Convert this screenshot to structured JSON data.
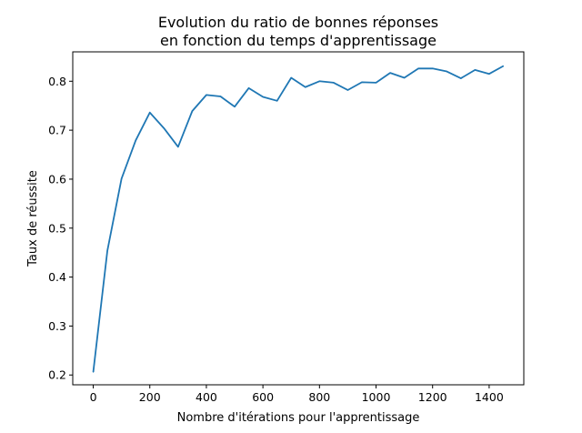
{
  "chart_data": {
    "type": "line",
    "title_lines": [
      "Evolution du ratio de bonnes réponses",
      "en fonction du temps d'apprentissage"
    ],
    "xlabel": "Nombre d'itérations pour l'apprentissage",
    "ylabel": "Taux de réussite",
    "xlim": [
      -72.5,
      1522.5
    ],
    "ylim": [
      0.18,
      0.86
    ],
    "xticks": [
      0,
      200,
      400,
      600,
      800,
      1000,
      1200,
      1400
    ],
    "yticks": [
      0.2,
      0.3,
      0.4,
      0.5,
      0.6,
      0.7,
      0.8
    ],
    "xtick_labels": [
      "0",
      "200",
      "400",
      "600",
      "800",
      "1000",
      "1200",
      "1400"
    ],
    "ytick_labels": [
      "0.2",
      "0.3",
      "0.4",
      "0.5",
      "0.6",
      "0.7",
      "0.8"
    ],
    "grid": false,
    "series": [
      {
        "color": "#1f77b4",
        "x": [
          0,
          50,
          100,
          150,
          200,
          250,
          300,
          350,
          400,
          450,
          500,
          550,
          600,
          650,
          700,
          750,
          800,
          850,
          900,
          950,
          1000,
          1050,
          1100,
          1150,
          1200,
          1250,
          1300,
          1350,
          1400,
          1450
        ],
        "y": [
          0.206,
          0.454,
          0.601,
          0.679,
          0.736,
          0.704,
          0.666,
          0.739,
          0.772,
          0.769,
          0.748,
          0.786,
          0.768,
          0.76,
          0.807,
          0.788,
          0.8,
          0.797,
          0.782,
          0.798,
          0.797,
          0.817,
          0.807,
          0.826,
          0.826,
          0.82,
          0.806,
          0.823,
          0.815,
          0.831
        ]
      }
    ]
  }
}
